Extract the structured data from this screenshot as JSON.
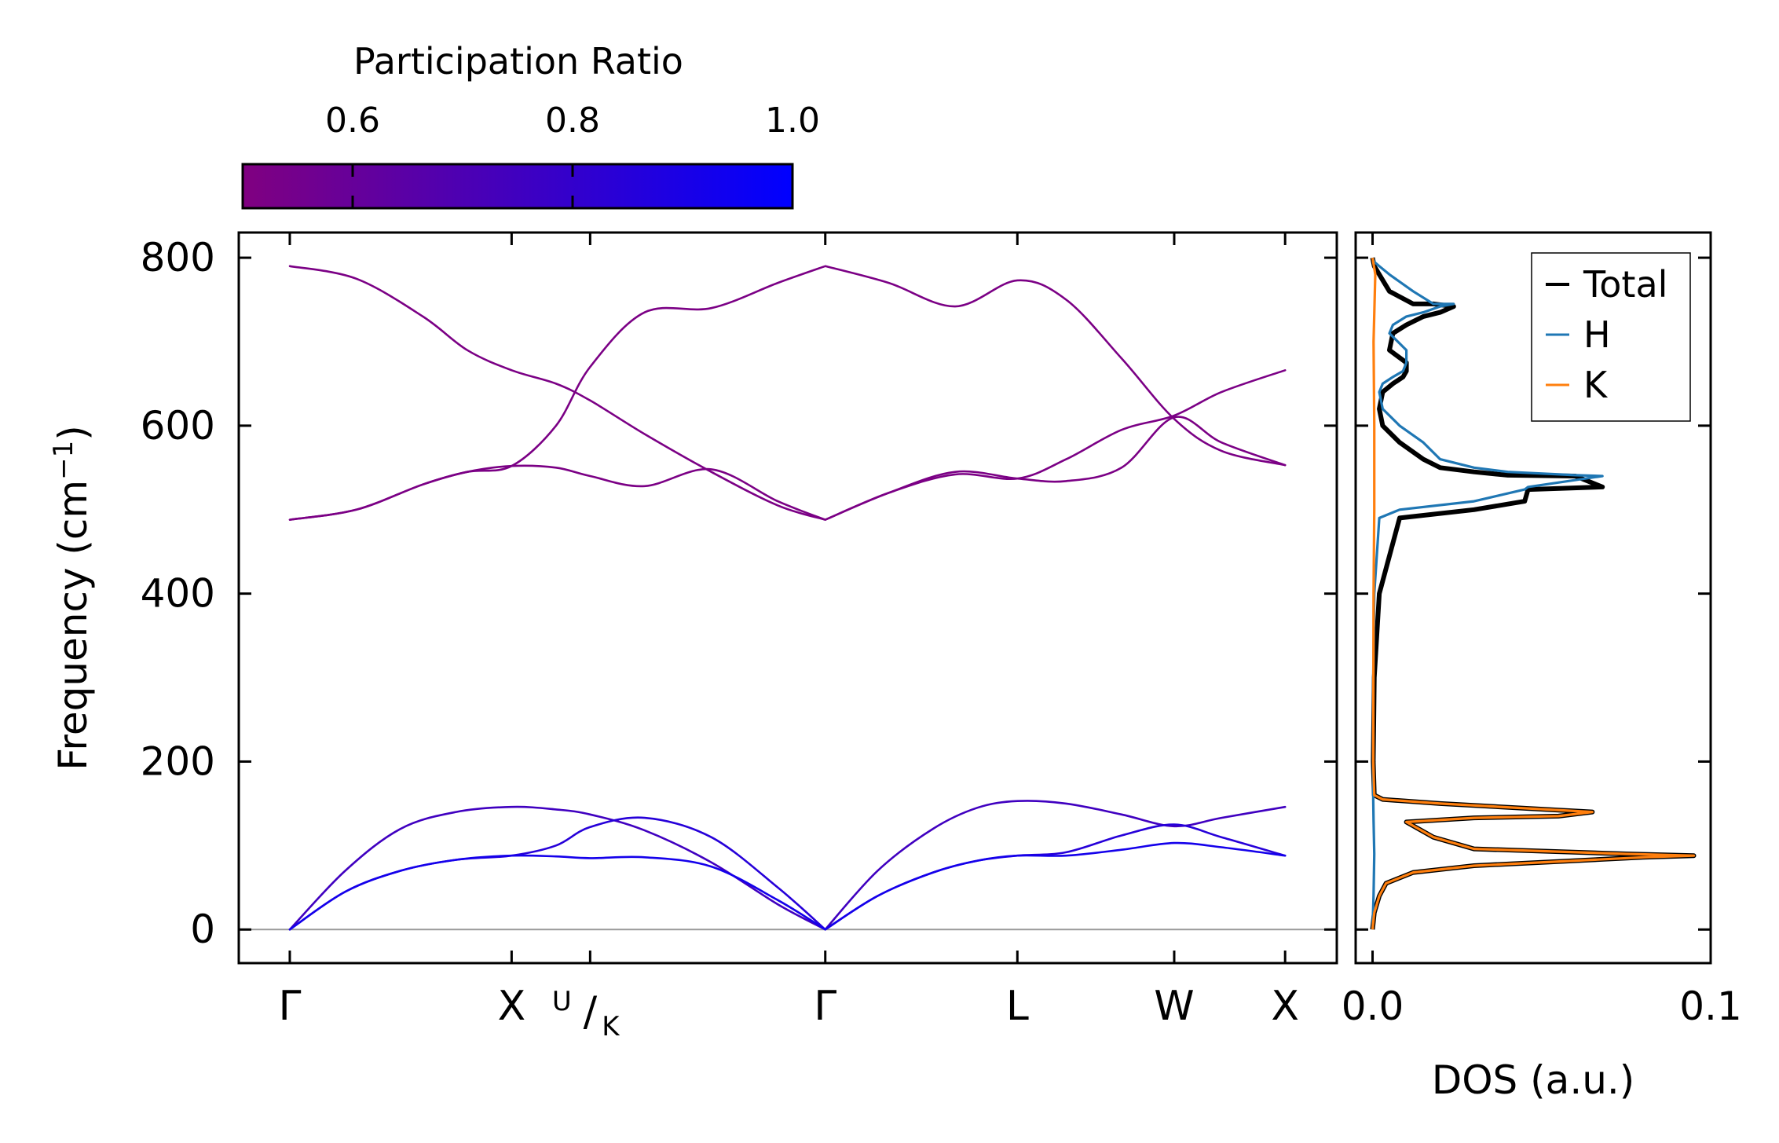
{
  "chart_data": [
    {
      "type": "line",
      "name": "phonon-band-structure",
      "ylabel_main": "Frequency (cm",
      "ylabel_sup": "−1",
      "ylabel_close": ")",
      "ylim": [
        -40,
        830
      ],
      "yticks": [
        0,
        200,
        400,
        600,
        800
      ],
      "ytick_labels": [
        "0",
        "200",
        "400",
        "600",
        "800"
      ],
      "kpath": [
        {
          "label": "Γ",
          "x": 0.0
        },
        {
          "label": "X",
          "x": 1.0
        },
        {
          "label": "U/K",
          "x": 1.354
        },
        {
          "label": "Γ",
          "x": 2.414
        },
        {
          "label": "L",
          "x": 3.28
        },
        {
          "label": "W",
          "x": 3.987
        },
        {
          "label": "X",
          "x": 4.487
        }
      ],
      "kpoint_label_u": "U",
      "kpoint_label_slash": "/",
      "kpoint_label_k": "K",
      "xlim": [
        -0.23,
        4.72
      ],
      "zero_line": 0,
      "series": [
        {
          "name": "optical-band-1",
          "participation": 0.52,
          "x": [
            0,
            0.3,
            0.6,
            0.8,
            1.0,
            1.2,
            1.354,
            1.6,
            1.9,
            2.2,
            2.414,
            2.7,
            3.0,
            3.28,
            3.5,
            3.75,
            3.987,
            4.2,
            4.487
          ],
          "y": [
            790,
            775,
            730,
            690,
            666,
            650,
            630,
            590,
            545,
            505,
            488,
            520,
            545,
            537,
            534,
            550,
            610,
            580,
            553
          ]
        },
        {
          "name": "optical-band-2",
          "participation": 0.52,
          "x": [
            0,
            0.3,
            0.6,
            0.8,
            1.0,
            1.2,
            1.354,
            1.6,
            1.9,
            2.2,
            2.414,
            2.7,
            3.0,
            3.28,
            3.5,
            3.75,
            3.987,
            4.2,
            4.487
          ],
          "y": [
            488,
            500,
            530,
            545,
            552,
            550,
            540,
            528,
            548,
            510,
            488,
            520,
            542,
            537,
            560,
            595,
            612,
            640,
            666
          ]
        },
        {
          "name": "optical-band-3",
          "participation": 0.52,
          "x": [
            0,
            0.3,
            0.6,
            0.8,
            1.0,
            1.2,
            1.354,
            1.6,
            1.9,
            2.2,
            2.414,
            2.7,
            3.0,
            3.28,
            3.5,
            3.75,
            3.987,
            4.2,
            4.487
          ],
          "y": [
            488,
            500,
            530,
            545,
            552,
            600,
            670,
            735,
            740,
            770,
            790,
            770,
            742,
            773,
            750,
            680,
            608,
            570,
            553
          ]
        },
        {
          "name": "acoustic-band-1",
          "participation": 0.75,
          "x": [
            0,
            0.25,
            0.5,
            0.75,
            1.0,
            1.2,
            1.354,
            1.6,
            1.9,
            2.2,
            2.414,
            2.65,
            2.9,
            3.1,
            3.28,
            3.5,
            3.75,
            3.987,
            4.2,
            4.487
          ],
          "y": [
            0,
            70,
            120,
            140,
            146,
            143,
            137,
            118,
            80,
            30,
            0,
            70,
            120,
            145,
            153,
            150,
            137,
            123,
            133,
            146
          ]
        },
        {
          "name": "acoustic-band-2",
          "participation": 0.85,
          "x": [
            0,
            0.25,
            0.5,
            0.75,
            1.0,
            1.2,
            1.354,
            1.6,
            1.9,
            2.2,
            2.414,
            2.65,
            2.9,
            3.1,
            3.28,
            3.5,
            3.75,
            3.987,
            4.2,
            4.487
          ],
          "y": [
            0,
            45,
            70,
            83,
            88,
            100,
            122,
            133,
            110,
            50,
            0,
            40,
            68,
            82,
            88,
            92,
            112,
            125,
            110,
            88
          ]
        },
        {
          "name": "acoustic-band-3",
          "participation": 0.92,
          "x": [
            0,
            0.25,
            0.5,
            0.75,
            1.0,
            1.2,
            1.354,
            1.6,
            1.9,
            2.2,
            2.414,
            2.65,
            2.9,
            3.1,
            3.28,
            3.5,
            3.75,
            3.987,
            4.2,
            4.487
          ],
          "y": [
            0,
            45,
            70,
            83,
            88,
            87,
            85,
            86,
            75,
            35,
            0,
            40,
            68,
            82,
            88,
            88,
            95,
            103,
            98,
            88
          ]
        }
      ]
    },
    {
      "type": "line",
      "name": "density-of-states",
      "xlabel": "DOS (a.u.)",
      "xlim": [
        -0.005,
        0.1
      ],
      "xticks": [
        0.0,
        0.1
      ],
      "xtick_labels": [
        "0.0",
        "0.1"
      ],
      "ylim": [
        -40,
        830
      ],
      "legend": "top-right",
      "series": [
        {
          "name": "Total",
          "color": "#000000",
          "x": [
            0.0,
            0.0005,
            0.002,
            0.004,
            0.012,
            0.03,
            0.06,
            0.08,
            0.095,
            0.075,
            0.03,
            0.018,
            0.01,
            0.03,
            0.055,
            0.065,
            0.02,
            0.003,
            0.0005,
            0.0002,
            0.0005,
            0.002,
            0.008,
            0.03,
            0.045,
            0.046,
            0.068,
            0.06,
            0.04,
            0.03,
            0.02,
            0.015,
            0.008,
            0.003,
            0.002,
            0.003,
            0.006,
            0.009,
            0.01,
            0.01,
            0.005,
            0.006,
            0.01,
            0.015,
            0.02,
            0.024,
            0.018,
            0.012,
            0.005,
            0.002,
            0.0005,
            0.0
          ],
          "y": [
            0,
            20,
            40,
            55,
            68,
            76,
            82,
            86,
            88,
            90,
            96,
            110,
            128,
            133,
            135,
            140,
            150,
            155,
            160,
            200,
            300,
            400,
            490,
            500,
            510,
            524,
            527,
            540,
            541,
            545,
            550,
            560,
            580,
            600,
            620,
            640,
            650,
            658,
            665,
            675,
            690,
            710,
            720,
            730,
            735,
            742,
            745,
            745,
            760,
            780,
            790,
            800
          ]
        },
        {
          "name": "H",
          "color": "#1f77b4",
          "x": [
            0.0,
            0.0003,
            0.0005,
            0.0003,
            0.0002,
            0.0002,
            0.0002,
            0.0005,
            0.002,
            0.008,
            0.03,
            0.045,
            0.046,
            0.068,
            0.06,
            0.04,
            0.03,
            0.02,
            0.015,
            0.008,
            0.003,
            0.002,
            0.003,
            0.006,
            0.009,
            0.01,
            0.01,
            0.005,
            0.006,
            0.01,
            0.015,
            0.02,
            0.024,
            0.018,
            0.012,
            0.005,
            0.002,
            0.0005,
            0.0
          ],
          "y": [
            0,
            40,
            90,
            130,
            155,
            200,
            300,
            400,
            490,
            500,
            510,
            524,
            527,
            540,
            541,
            545,
            550,
            560,
            580,
            600,
            620,
            640,
            650,
            658,
            665,
            675,
            690,
            710,
            720,
            730,
            735,
            742,
            745,
            745,
            760,
            780,
            790,
            795,
            800
          ]
        },
        {
          "name": "K",
          "color": "#ff7f0e",
          "x": [
            0.0,
            0.0005,
            0.002,
            0.004,
            0.012,
            0.03,
            0.06,
            0.08,
            0.095,
            0.075,
            0.03,
            0.018,
            0.01,
            0.03,
            0.055,
            0.065,
            0.02,
            0.003,
            0.0005,
            0.0002,
            0.0003,
            0.0005,
            0.0005,
            0.0003,
            0.0008,
            0.0
          ],
          "y": [
            0,
            20,
            40,
            55,
            68,
            76,
            82,
            86,
            88,
            90,
            96,
            110,
            128,
            133,
            135,
            140,
            150,
            155,
            160,
            200,
            400,
            500,
            600,
            700,
            780,
            800
          ]
        }
      ]
    }
  ],
  "colorbar": {
    "title": "Participation Ratio",
    "range": [
      0.5,
      1.0
    ],
    "ticks": [
      0.6,
      0.8,
      1.0
    ],
    "tick_labels": [
      "0.6",
      "0.8",
      "1.0"
    ],
    "color_low": "#800080",
    "color_high": "#0000ff"
  }
}
